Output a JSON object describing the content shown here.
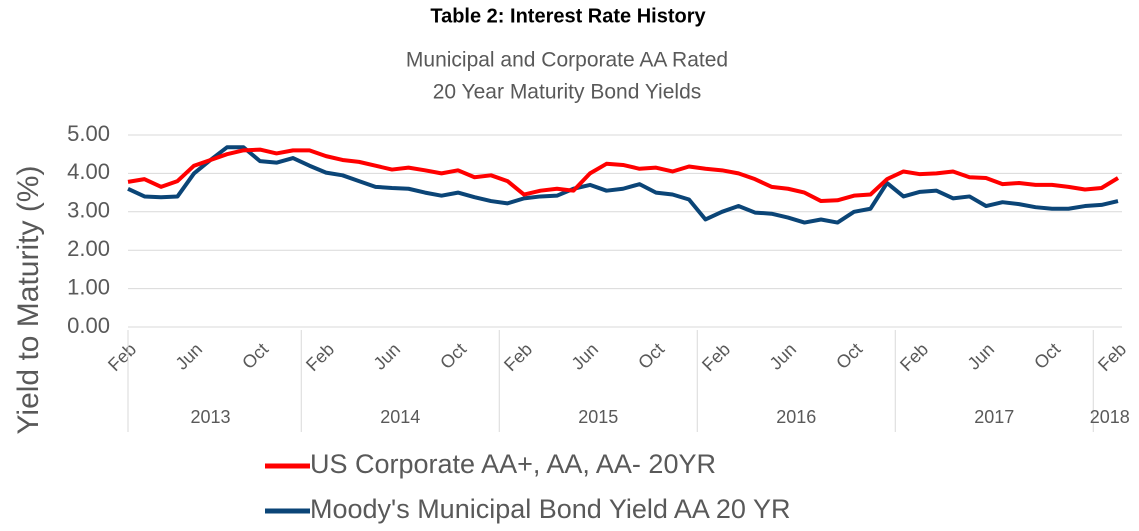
{
  "chart_data": {
    "type": "line",
    "title": "Table 2: Interest Rate History",
    "subtitle": [
      "Municipal and Corporate AA Rated",
      "20 Year Maturity Bond Yields"
    ],
    "y_label": "Yield to Maturity (%)",
    "categories": [
      "Feb",
      null,
      null,
      null,
      "Jun",
      null,
      null,
      null,
      "Oct",
      null,
      null,
      null,
      "Feb",
      null,
      null,
      null,
      "Jun",
      null,
      null,
      null,
      "Oct",
      null,
      null,
      null,
      "Feb",
      null,
      null,
      null,
      "Jun",
      null,
      null,
      null,
      "Oct",
      null,
      null,
      null,
      "Feb",
      null,
      null,
      null,
      "Jun",
      null,
      null,
      null,
      "Oct",
      null,
      null,
      null,
      "Feb",
      null,
      null,
      null,
      "Jun",
      null,
      null,
      null,
      "Oct",
      null,
      null,
      null,
      "Feb"
    ],
    "x_groups": [
      {
        "label": "2013",
        "count": 11
      },
      {
        "label": "2014",
        "count": 12
      },
      {
        "label": "2015",
        "count": 12
      },
      {
        "label": "2016",
        "count": 12
      },
      {
        "label": "2017",
        "count": 12
      },
      {
        "label": "2018",
        "count": 2
      }
    ],
    "ylim": [
      0,
      5
    ],
    "yticks": [
      {
        "value": 0,
        "label": "0.00"
      },
      {
        "value": 1,
        "label": "1.00"
      },
      {
        "value": 2,
        "label": "2.00"
      },
      {
        "value": 3,
        "label": "3.00"
      },
      {
        "value": 4,
        "label": "4.00"
      },
      {
        "value": 5,
        "label": "5.00"
      }
    ],
    "grid": true,
    "series": [
      {
        "name": "US Corporate AA+, AA, AA- 20YR",
        "color": "#ff0000",
        "values": [
          3.78,
          3.85,
          3.65,
          3.8,
          4.2,
          4.35,
          4.5,
          4.6,
          4.62,
          4.52,
          4.6,
          4.6,
          4.45,
          4.35,
          4.3,
          4.2,
          4.1,
          4.15,
          4.08,
          4.0,
          4.08,
          3.9,
          3.95,
          3.8,
          3.45,
          3.55,
          3.6,
          3.55,
          4.0,
          4.25,
          4.22,
          4.12,
          4.15,
          4.05,
          4.18,
          4.12,
          4.08,
          4.0,
          3.85,
          3.65,
          3.6,
          3.5,
          3.28,
          3.3,
          3.42,
          3.45,
          3.85,
          4.05,
          3.98,
          4.0,
          4.05,
          3.9,
          3.88,
          3.72,
          3.75,
          3.7,
          3.7,
          3.65,
          3.58,
          3.62,
          3.88
        ]
      },
      {
        "name": "Moody's Municipal Bond Yield AA 20 YR",
        "color": "#0b4577",
        "values": [
          3.6,
          3.4,
          3.38,
          3.4,
          4.0,
          4.35,
          4.68,
          4.68,
          4.32,
          4.28,
          4.4,
          4.2,
          4.02,
          3.95,
          3.8,
          3.65,
          3.62,
          3.6,
          3.5,
          3.42,
          3.5,
          3.38,
          3.28,
          3.22,
          3.35,
          3.4,
          3.42,
          3.6,
          3.7,
          3.55,
          3.6,
          3.72,
          3.5,
          3.45,
          3.32,
          2.8,
          3.0,
          3.15,
          2.98,
          2.95,
          2.85,
          2.72,
          2.8,
          2.72,
          3.0,
          3.08,
          3.75,
          3.4,
          3.52,
          3.55,
          3.35,
          3.4,
          3.15,
          3.25,
          3.2,
          3.12,
          3.08,
          3.08,
          3.15,
          3.18,
          3.28
        ]
      }
    ]
  }
}
